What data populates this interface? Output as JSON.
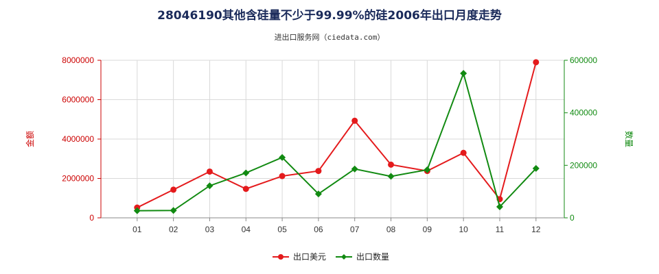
{
  "title": "28046190其他含硅量不少于99.99%的硅2006年出口月度走势",
  "subtitle": "进出口服务网（ciedata.com）",
  "colors": {
    "value_series": "#e41a1c",
    "quantity_series": "#118a11",
    "left_axis": "#cc0000",
    "right_axis": "#118a11",
    "grid": "#d9d9d9"
  },
  "chart_data": {
    "type": "line",
    "categories": [
      "01",
      "02",
      "03",
      "04",
      "05",
      "06",
      "07",
      "08",
      "09",
      "10",
      "11",
      "12"
    ],
    "y_left": {
      "label": "金额",
      "range": [
        0,
        8000000
      ],
      "ticks": [
        "0",
        "2000000",
        "4000000",
        "6000000",
        "8000000"
      ]
    },
    "y_right": {
      "label": "数量",
      "range": [
        0,
        600000
      ],
      "ticks": [
        "0",
        "200000",
        "400000",
        "600000"
      ]
    },
    "grid": true,
    "legend_position": "bottom",
    "series": [
      {
        "name": "出口美元",
        "axis": "left",
        "values": [
          520000,
          1430000,
          2350000,
          1470000,
          2120000,
          2380000,
          4930000,
          2700000,
          2380000,
          3300000,
          950000,
          7900000
        ]
      },
      {
        "name": "出口数量",
        "axis": "right",
        "values": [
          27000,
          28000,
          122000,
          171000,
          230000,
          91000,
          186000,
          158000,
          183000,
          550000,
          42000,
          188000
        ]
      }
    ]
  }
}
